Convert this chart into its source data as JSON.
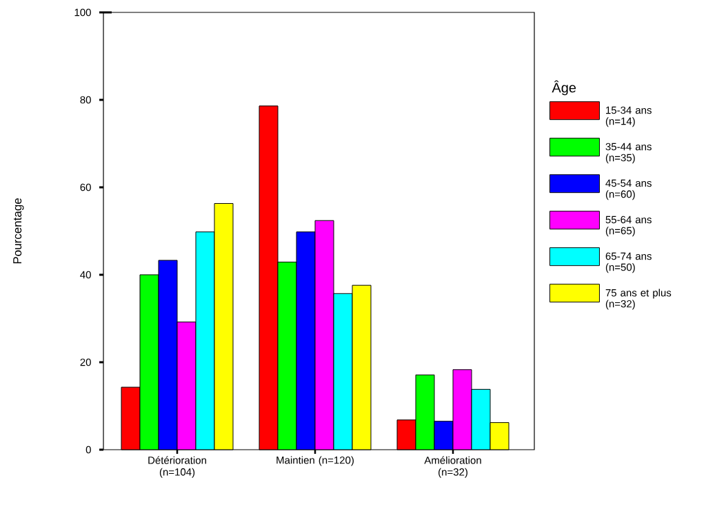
{
  "chart_data": {
    "type": "bar",
    "ylabel": "Pourcentage",
    "legend_title": "Âge",
    "legend": "right",
    "categories": [
      "Détérioration (n=104)",
      "Maintien (n=120)",
      "Amélioration (n=32)"
    ],
    "ylim": [
      0,
      100
    ],
    "yticks": [
      0,
      20,
      40,
      60,
      80,
      100
    ],
    "series": [
      {
        "name": "15-34 ans (n=14)",
        "color": "#ff0000",
        "values": [
          14.3,
          78.6,
          6.8
        ]
      },
      {
        "name": "35-44 ans (n=35)",
        "color": "#00ff00",
        "values": [
          40.0,
          42.9,
          17.1
        ]
      },
      {
        "name": "45-54 ans (n=60)",
        "color": "#0000ff",
        "values": [
          43.3,
          49.8,
          6.5
        ]
      },
      {
        "name": "55-64 ans (n=65)",
        "color": "#ff00ff",
        "values": [
          29.2,
          52.4,
          18.3
        ]
      },
      {
        "name": "65-74 ans (n=50)",
        "color": "#00ffff",
        "values": [
          49.8,
          35.7,
          13.8
        ]
      },
      {
        "name": "75 ans et plus (n=32)",
        "color": "#ffff00",
        "values": [
          56.3,
          37.6,
          6.2
        ]
      }
    ]
  }
}
